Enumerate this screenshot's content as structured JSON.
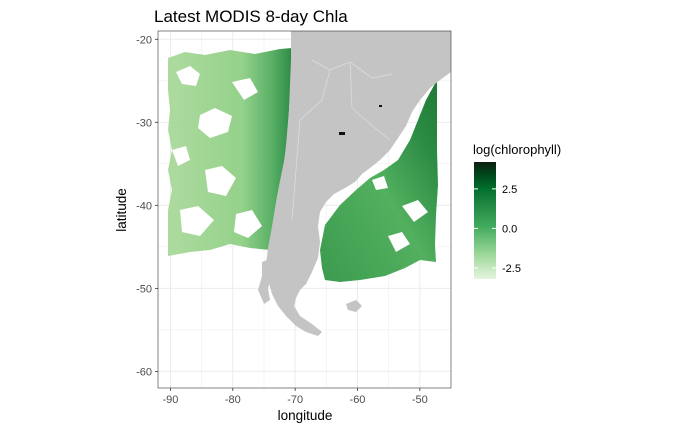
{
  "chart_data": {
    "type": "heatmap",
    "title": "Latest MODIS 8-day Chla",
    "xlabel": "longitude",
    "ylabel": "latitude",
    "xlim": [
      -92,
      -45
    ],
    "ylim": [
      -62,
      -19
    ],
    "x_ticks": [
      -90,
      -80,
      -70,
      -60,
      -50
    ],
    "x_tick_labels": [
      "-90",
      "-80",
      "-70",
      "-60",
      "-50"
    ],
    "y_ticks": [
      -20,
      -30,
      -40,
      -50,
      -60
    ],
    "y_tick_labels": [
      "-20",
      "-30",
      "-40",
      "-50",
      "-60"
    ],
    "grid": true,
    "legend": {
      "title": "log(chlorophyll)",
      "placement": "right",
      "range": [
        -3.2,
        4.2
      ],
      "ticks": [
        2.5,
        0.0,
        -2.5
      ],
      "tick_labels": [
        "2.5",
        "0.0",
        "-2.5"
      ],
      "colors": [
        "#e5f5e0",
        "#a1d99b",
        "#41ab5d",
        "#238b45",
        "#006d2c",
        "#00441b",
        "#0f1f10"
      ]
    },
    "colors": {
      "panel_background": "#ffffff",
      "grid": "#ebebeb",
      "land": "#c4c4c4",
      "water_low": "#c7e9c0",
      "water_mid": "#74c476",
      "water_high": "#1b7a37"
    }
  }
}
